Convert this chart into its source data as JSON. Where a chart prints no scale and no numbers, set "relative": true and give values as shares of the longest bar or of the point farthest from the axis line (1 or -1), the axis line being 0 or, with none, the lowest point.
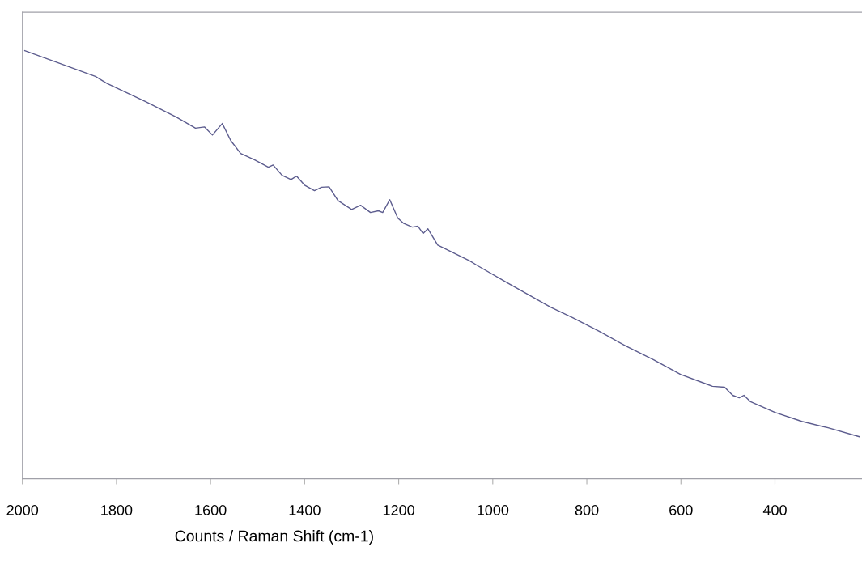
{
  "chart_data": {
    "type": "line",
    "relative": true,
    "xlabel": "Counts / Raman Shift (cm-1)",
    "xlim": [
      2000,
      215
    ],
    "xticks": [
      2000,
      1800,
      1600,
      1400,
      1200,
      1000,
      800,
      600,
      400
    ],
    "tick_labels": "x",
    "grid": false,
    "legend": false,
    "marker": "none",
    "line_style": "solid",
    "series": [
      {
        "color": "#5c5c8e",
        "x": [
          1995,
          1845,
          1821,
          1738,
          1673,
          1632,
          1613,
          1596,
          1575,
          1557,
          1536,
          1506,
          1477,
          1467,
          1448,
          1429,
          1417,
          1400,
          1379,
          1364,
          1348,
          1329,
          1300,
          1281,
          1260,
          1243,
          1234,
          1219,
          1202,
          1190,
          1171,
          1159,
          1148,
          1138,
          1117,
          1049,
          1031,
          974,
          916,
          877,
          830,
          773,
          717,
          658,
          601,
          545,
          533,
          507,
          490,
          476,
          466,
          452,
          400,
          343,
          287,
          220
        ],
        "values": [
          1.0,
          0.94,
          0.924,
          0.881,
          0.845,
          0.819,
          0.822,
          0.803,
          0.83,
          0.79,
          0.76,
          0.745,
          0.728,
          0.733,
          0.709,
          0.699,
          0.707,
          0.686,
          0.673,
          0.681,
          0.682,
          0.65,
          0.629,
          0.639,
          0.622,
          0.626,
          0.622,
          0.652,
          0.609,
          0.597,
          0.588,
          0.59,
          0.573,
          0.584,
          0.546,
          0.509,
          0.497,
          0.461,
          0.425,
          0.401,
          0.376,
          0.344,
          0.31,
          0.278,
          0.244,
          0.221,
          0.216,
          0.214,
          0.195,
          0.189,
          0.195,
          0.18,
          0.155,
          0.134,
          0.119,
          0.098
        ]
      }
    ]
  }
}
